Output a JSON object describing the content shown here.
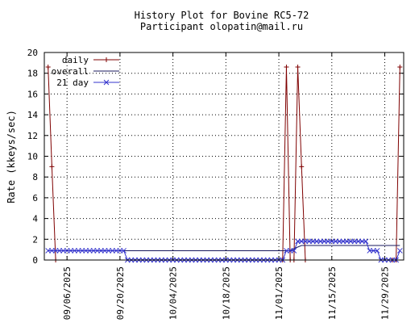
{
  "chart_data": {
    "type": "line",
    "title": "History Plot for Bovine RC5-72",
    "subtitle": "Participant olopatin@mail.ru",
    "xlabel": "",
    "ylabel": "Rate (kkeys/sec)",
    "ylim": [
      0,
      20
    ],
    "yticks": [
      0,
      2,
      4,
      6,
      8,
      10,
      12,
      14,
      16,
      18,
      20
    ],
    "xlim": [
      "2025-08-31",
      "2025-12-04"
    ],
    "xticks": [
      "09/06/2025",
      "09/20/2025",
      "10/04/2025",
      "10/18/2025",
      "11/01/2025",
      "11/15/2025",
      "11/29/2025"
    ],
    "grid": true,
    "legend_position": "top-left",
    "series": [
      {
        "name": "daily",
        "color": "#7f0000",
        "marker": "plus",
        "points": [
          [
            "2025-09-01",
            18.6
          ],
          [
            "2025-09-02",
            9.0
          ],
          [
            "2025-09-03",
            0
          ],
          [
            "2025-11-02",
            0
          ],
          [
            "2025-11-03",
            18.6
          ],
          [
            "2025-11-04",
            0
          ],
          [
            "2025-11-05",
            0
          ],
          [
            "2025-11-06",
            18.6
          ],
          [
            "2025-11-07",
            9.0
          ],
          [
            "2025-11-08",
            0
          ],
          [
            "2025-12-01",
            0
          ],
          [
            "2025-12-02",
            0
          ],
          [
            "2025-12-03",
            18.6
          ]
        ]
      },
      {
        "name": "overall",
        "color": "#1a1a5e",
        "marker": "none",
        "points": [
          [
            "2025-09-01",
            0.9
          ],
          [
            "2025-11-04",
            0.9
          ],
          [
            "2025-11-05",
            1.1
          ],
          [
            "2025-11-07",
            1.4
          ],
          [
            "2025-12-03",
            1.4
          ]
        ]
      },
      {
        "name": "21 day",
        "color": "#3333cc",
        "marker": "x",
        "points": [
          [
            "2025-09-01",
            0.9
          ],
          [
            "2025-09-21",
            0.9
          ],
          [
            "2025-09-22",
            0
          ],
          [
            "2025-11-02",
            0
          ],
          [
            "2025-11-03",
            0.9
          ],
          [
            "2025-11-05",
            0.9
          ],
          [
            "2025-11-06",
            1.8
          ],
          [
            "2025-11-24",
            1.8
          ],
          [
            "2025-11-25",
            0.9
          ],
          [
            "2025-11-27",
            0.9
          ],
          [
            "2025-11-28",
            0
          ],
          [
            "2025-12-02",
            0
          ],
          [
            "2025-12-03",
            0.9
          ]
        ]
      }
    ]
  }
}
